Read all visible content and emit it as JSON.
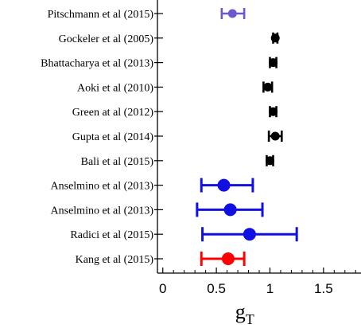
{
  "chart_data": {
    "type": "scatter",
    "subtype": "forest-plot-with-horizontal-error-bars",
    "xlabel": "g",
    "xlabel_subscript": "T",
    "xlim": [
      -0.05,
      1.85
    ],
    "xticks": [
      0,
      0.5,
      1,
      1.5
    ],
    "xtick_labels": [
      "0",
      "0.5",
      "1",
      "1.5"
    ],
    "grid": false,
    "rows": [
      {
        "label": "Pitschmann et al (2015)",
        "value": 0.65,
        "err_low": 0.55,
        "err_high": 0.76,
        "color": "#6a5acd",
        "marker": "small"
      },
      {
        "label": "Gockeler et al (2005)",
        "value": 1.05,
        "err_low": 1.03,
        "err_high": 1.07,
        "color": "#000000",
        "marker": "small"
      },
      {
        "label": "Bhattacharya et al (2013)",
        "value": 1.03,
        "err_low": 1.0,
        "err_high": 1.06,
        "color": "#000000",
        "marker": "small"
      },
      {
        "label": "Aoki et al (2010)",
        "value": 0.98,
        "err_low": 0.94,
        "err_high": 1.02,
        "color": "#000000",
        "marker": "small"
      },
      {
        "label": "Green at al (2012)",
        "value": 1.03,
        "err_low": 1.0,
        "err_high": 1.06,
        "color": "#000000",
        "marker": "small"
      },
      {
        "label": "Gupta et al (2014)",
        "value": 1.05,
        "err_low": 0.99,
        "err_high": 1.11,
        "color": "#000000",
        "marker": "small"
      },
      {
        "label": "Bali et al (2015)",
        "value": 1.0,
        "err_low": 0.97,
        "err_high": 1.03,
        "color": "#000000",
        "marker": "small"
      },
      {
        "label": "Anselmino et al (2013)",
        "value": 0.57,
        "err_low": 0.36,
        "err_high": 0.84,
        "color": "#1010e0",
        "marker": "large"
      },
      {
        "label": "Anselmino et al (2013)",
        "value": 0.63,
        "err_low": 0.32,
        "err_high": 0.93,
        "color": "#1010e0",
        "marker": "large"
      },
      {
        "label": "Radici et al (2015)",
        "value": 0.81,
        "err_low": 0.37,
        "err_high": 1.25,
        "color": "#1010e0",
        "marker": "large"
      },
      {
        "label": "Kang et al (2015)",
        "value": 0.61,
        "err_low": 0.36,
        "err_high": 0.76,
        "color": "#ff0000",
        "marker": "large"
      }
    ]
  }
}
